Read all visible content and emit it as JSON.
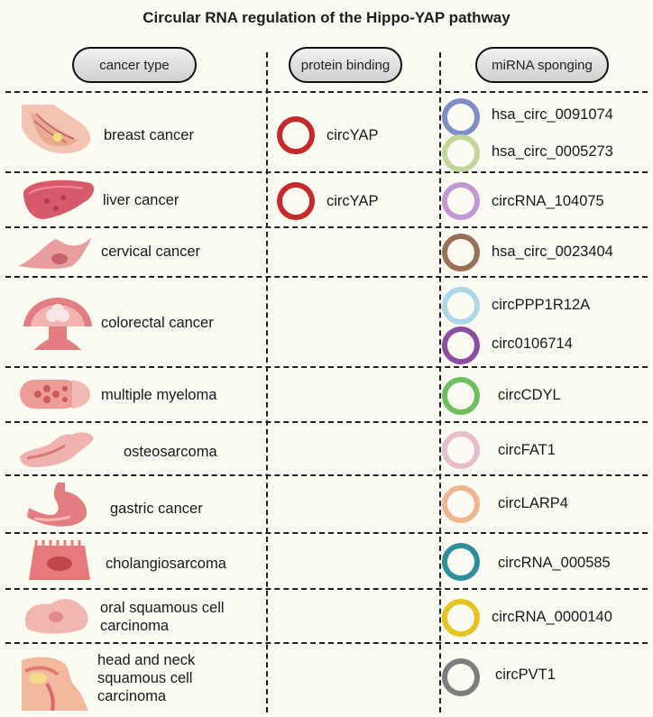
{
  "title": "Circular RNA regulation of the Hippo-YAP pathway",
  "headers": {
    "cancer_type": "cancer type",
    "protein_binding": "protein binding",
    "mirna_sponging": "miRNA sponging"
  },
  "rows": [
    {
      "cancer": "breast cancer",
      "protein": "circYAP",
      "mirnas": [
        {
          "name": "hsa_circ_0091074",
          "color": "#7f8fc6"
        },
        {
          "name": "hsa_circ_0005273",
          "color": "#c2d69a"
        }
      ]
    },
    {
      "cancer": "liver cancer",
      "protein": "circYAP",
      "mirnas": [
        {
          "name": "circRNA_104075",
          "color": "#c396d4"
        }
      ]
    },
    {
      "cancer": "cervical cancer",
      "protein": "",
      "mirnas": [
        {
          "name": "hsa_circ_0023404",
          "color": "#9a6f5a"
        }
      ]
    },
    {
      "cancer": "colorectal cancer",
      "protein": "",
      "mirnas": [
        {
          "name": "circPPP1R12A",
          "color": "#acd7e6"
        },
        {
          "name": "circ0106714",
          "color": "#8b4ea3"
        }
      ]
    },
    {
      "cancer": "multiple myeloma",
      "protein": "",
      "mirnas": [
        {
          "name": "circCDYL",
          "color": "#6cbf5a"
        }
      ]
    },
    {
      "cancer": "osteosarcoma",
      "protein": "",
      "mirnas": [
        {
          "name": "circFAT1",
          "color": "#e8bccb"
        }
      ]
    },
    {
      "cancer": "gastric cancer",
      "protein": "",
      "mirnas": [
        {
          "name": "circLARP4",
          "color": "#f0b58e"
        }
      ]
    },
    {
      "cancer": "cholangiosarcoma",
      "protein": "",
      "mirnas": [
        {
          "name": "circRNA_000585",
          "color": "#2f8e9c"
        }
      ]
    },
    {
      "cancer": "oral squamous cell carcinoma",
      "protein": "",
      "mirnas": [
        {
          "name": "circRNA_0000140",
          "color": "#e6c31e"
        }
      ]
    },
    {
      "cancer": "head and neck squamous cell carcinoma",
      "protein": "",
      "mirnas": [
        {
          "name": "circPVT1",
          "color": "#7d7d7d"
        }
      ]
    }
  ],
  "colors": {
    "protein_ring": "#c72a2a"
  }
}
